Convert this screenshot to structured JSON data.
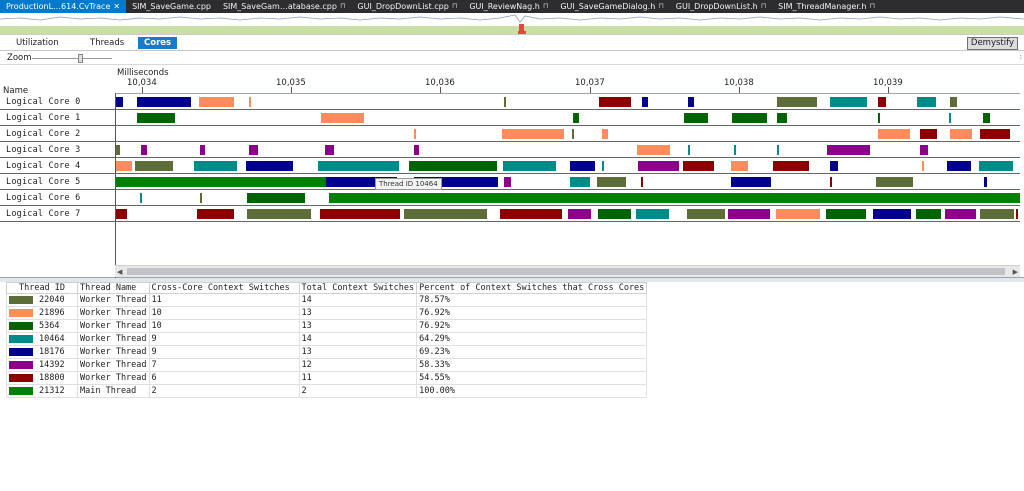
{
  "tabs": [
    {
      "label": "ProductionL…614.CvTrace",
      "active": true,
      "closable": true,
      "pinned": false
    },
    {
      "label": "SIM_SaveGame.cpp",
      "active": false,
      "closable": false,
      "pinned": false
    },
    {
      "label": "SIM_SaveGam…atabase.cpp",
      "active": false,
      "closable": false,
      "pinned": true
    },
    {
      "label": "GUI_DropDownList.cpp",
      "active": false,
      "closable": false,
      "pinned": true
    },
    {
      "label": "GUI_ReviewNag.h",
      "active": false,
      "closable": false,
      "pinned": true
    },
    {
      "label": "GUI_SaveGameDialog.h",
      "active": false,
      "closable": false,
      "pinned": true
    },
    {
      "label": "GUI_DropDownList.h",
      "active": false,
      "closable": false,
      "pinned": true
    },
    {
      "label": "SIM_ThreadManager.h",
      "active": false,
      "closable": false,
      "pinned": true
    }
  ],
  "view_tabs": [
    "Utilization",
    "Threads",
    "Cores"
  ],
  "active_view": "Cores",
  "demystify_label": "Demystify",
  "zoom_label": "Zoom",
  "timeline": {
    "unit_label": "Milliseconds",
    "name_header": "Name",
    "ticks": [
      "10,034",
      "10,035",
      "10,036",
      "10,037",
      "10,038",
      "10,039"
    ],
    "tooltip": "Thread ID 10464",
    "cores": [
      "Logical Core 0",
      "Logical Core 1",
      "Logical Core 2",
      "Logical Core 3",
      "Logical Core 4",
      "Logical Core 5",
      "Logical Core 6",
      "Logical Core 7"
    ]
  },
  "colors": {
    "22040": "#5c6e35",
    "21896": "#ff8c5a",
    "5364": "#006400",
    "10464": "#008b8b",
    "18176": "#00008b",
    "14392": "#8b008b",
    "18800": "#8b0000",
    "21312": "#008000"
  },
  "table": {
    "headers": [
      "Thread ID",
      "Thread Name",
      "Cross-Core Context Switches",
      "Total Context Switches",
      "Percent of Context Switches that Cross Cores"
    ],
    "rows": [
      {
        "id": "22040",
        "name": "Worker Thread",
        "cross": "11",
        "total": "14",
        "percent": "78.57%"
      },
      {
        "id": "21896",
        "name": "Worker Thread",
        "cross": "10",
        "total": "13",
        "percent": "76.92%"
      },
      {
        "id": "5364",
        "name": "Worker Thread",
        "cross": "10",
        "total": "13",
        "percent": "76.92%"
      },
      {
        "id": "10464",
        "name": "Worker Thread",
        "cross": "9",
        "total": "14",
        "percent": "64.29%"
      },
      {
        "id": "18176",
        "name": "Worker Thread",
        "cross": "9",
        "total": "13",
        "percent": "69.23%"
      },
      {
        "id": "14392",
        "name": "Worker Thread",
        "cross": "7",
        "total": "12",
        "percent": "58.33%"
      },
      {
        "id": "18800",
        "name": "Worker Thread",
        "cross": "6",
        "total": "11",
        "percent": "54.55%"
      },
      {
        "id": "21312",
        "name": "Main Thread",
        "cross": "2",
        "total": "2",
        "percent": "100.00%"
      }
    ]
  }
}
